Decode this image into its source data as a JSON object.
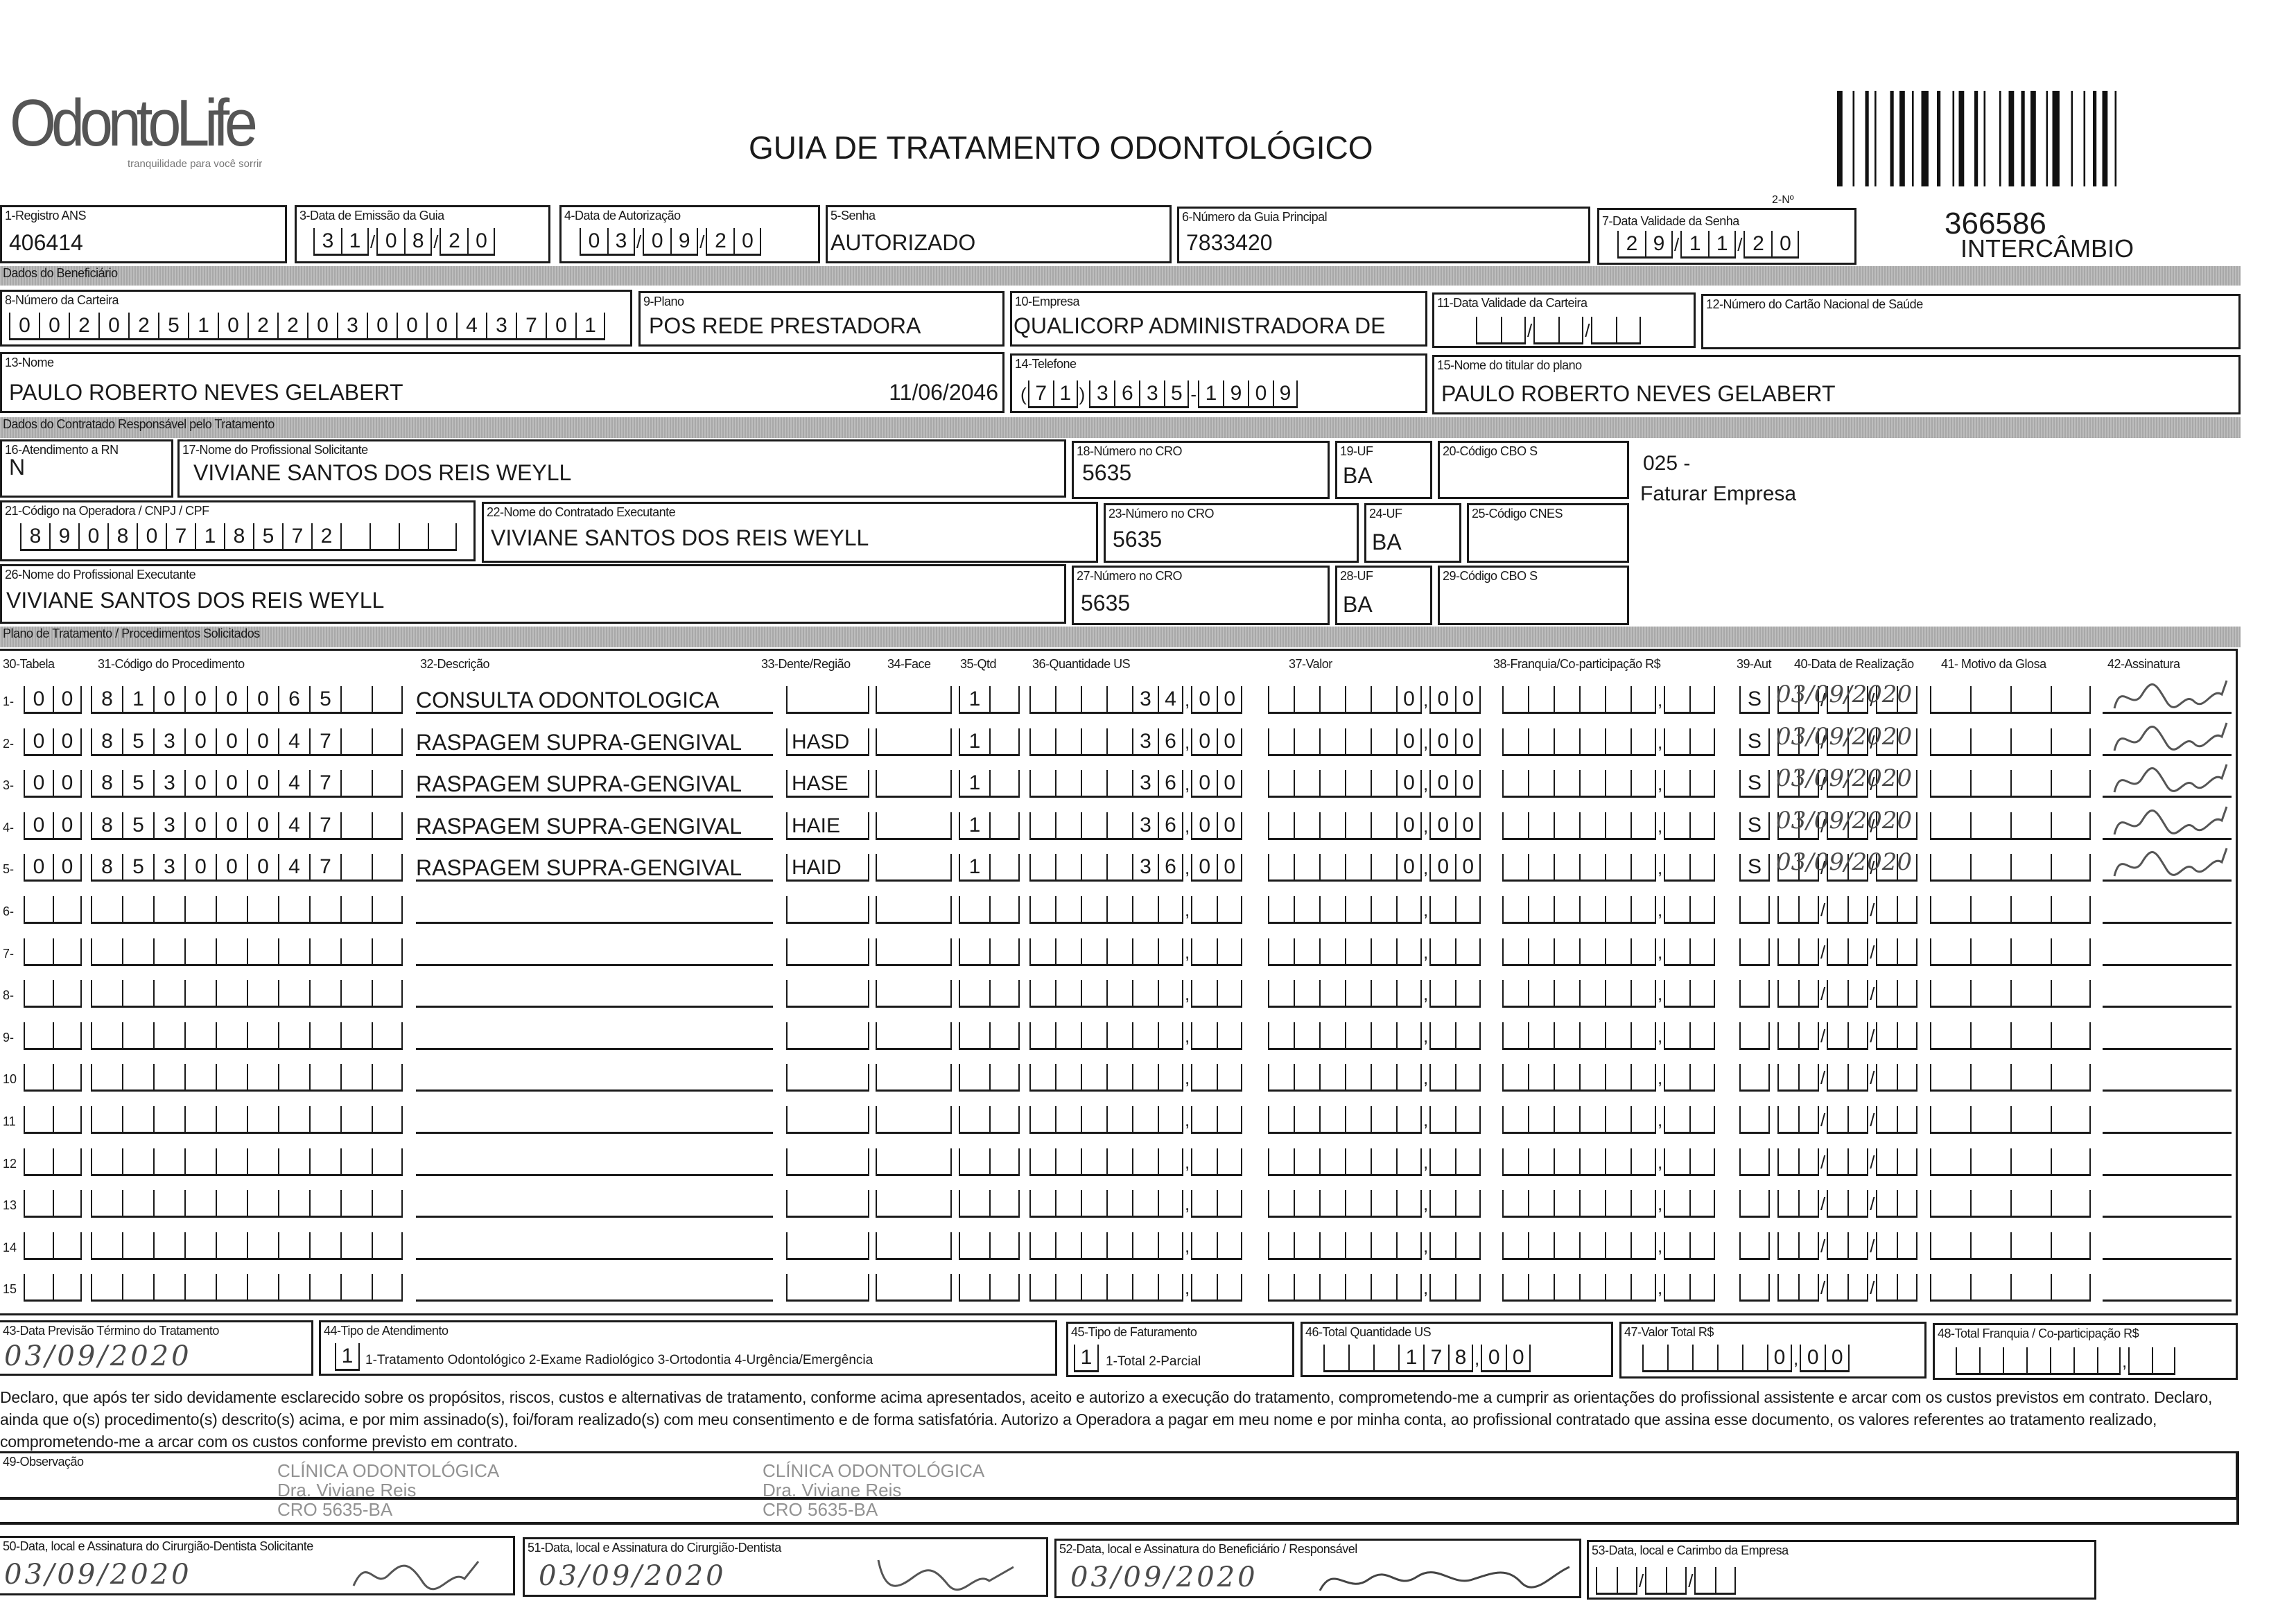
{
  "header": {
    "logo_text": "OdontoLife",
    "logo_tagline": "tranquilidade para você sorrir",
    "title": "GUIA DE TRATAMENTO ODONTOLÓGICO",
    "guide_no_label": "2-Nº",
    "guide_number": "366586",
    "guide_type": "INTERCÂMBIO"
  },
  "fields": {
    "registro_ans": {
      "label": "1-Registro ANS",
      "value": "406414"
    },
    "data_emissao": {
      "label": "3-Data de Emissão da Guia",
      "value": "310820"
    },
    "data_autorizacao": {
      "label": "4-Data de Autorização",
      "value": "030920"
    },
    "senha": {
      "label": "5-Senha",
      "value": "AUTORIZADO"
    },
    "guia_principal": {
      "label": "6-Número da Guia Principal",
      "value": "7833420"
    },
    "validade_senha": {
      "label": "7-Data Validade da Senha",
      "value": "291120"
    },
    "numero_carteira": {
      "label": "8-Número da Carteira",
      "value": "00202510220300043701"
    },
    "plano": {
      "label": "9-Plano",
      "value": "POS REDE PRESTADORA"
    },
    "empresa": {
      "label": "10-Empresa",
      "value": "QUALICORP ADMINISTRADORA DE"
    },
    "validade_carteira": {
      "label": "11-Data Validade da Carteira",
      "value": ""
    },
    "cartao_nacional": {
      "label": "12-Número do Cartão Nacional de Saúde",
      "value": ""
    },
    "nome": {
      "label": "13-Nome",
      "value": "PAULO ROBERTO NEVES GELABERT",
      "date": "11/06/2046"
    },
    "telefone": {
      "label": "14-Telefone",
      "value": "7136351909"
    },
    "titular": {
      "label": "15-Nome do titular do plano",
      "value": "PAULO ROBERTO NEVES GELABERT"
    },
    "atendimento_rn": {
      "label": "16-Atendimento a RN",
      "value": "N"
    },
    "prof_solicitante": {
      "label": "17-Nome do Profissional Solicitante",
      "value": "VIVIANE SANTOS DOS REIS WEYLL"
    },
    "cro_18": {
      "label": "18-Número no CRO",
      "value": "5635"
    },
    "uf_19": {
      "label": "19-UF",
      "value": "BA"
    },
    "cbo_20": {
      "label": "20-Código CBO S",
      "value": ""
    },
    "codigo_operadora": {
      "label": "21-Código na Operadora / CNPJ / CPF",
      "value": "89080718572"
    },
    "contratado_executante": {
      "label": "22-Nome do Contratado Executante",
      "value": "VIVIANE SANTOS DOS REIS WEYLL"
    },
    "cro_23": {
      "label": "23-Número no CRO",
      "value": "5635"
    },
    "uf_24": {
      "label": "24-UF",
      "value": "BA"
    },
    "cnes_25": {
      "label": "25-Código CNES",
      "value": ""
    },
    "prof_executante": {
      "label": "26-Nome do Profissional Executante",
      "value": "VIVIANE SANTOS DOS REIS WEYLL"
    },
    "cro_27": {
      "label": "27-Número no CRO",
      "value": "5635"
    },
    "uf_28": {
      "label": "28-UF",
      "value": "BA"
    },
    "cbo_29": {
      "label": "29-Código CBO S",
      "value": ""
    }
  },
  "side_note": {
    "code": "025 -",
    "text": "Faturar Empresa"
  },
  "sections": {
    "beneficiario": "Dados do Beneficiário",
    "contratado": "Dados do Contratado Responsável pelo Tratamento",
    "plano": "Plano de Tratamento / Procedimentos Solicitados"
  },
  "table": {
    "headers": [
      "30-Tabela",
      "31-Código do Procedimento",
      "32-Descrição",
      "33-Dente/Região",
      "34-Face",
      "35-Qtd",
      "36-Quantidade US",
      "37-Valor",
      "38-Franquia/Co-participação R$",
      "39-Aut",
      "40-Data de Realização",
      "41- Motivo da Glosa",
      "42-Assinatura"
    ],
    "rows": [
      {
        "n": "1-",
        "tabela": "00",
        "codigo": "81000065",
        "descricao": "CONSULTA ODONTOLOGICA",
        "dente": "",
        "face": "",
        "qtd": "1",
        "qtd_us": "3400",
        "valor": "000",
        "franquia": "",
        "aut": "S",
        "data": "03/09/2020",
        "glosa": "",
        "signed": true
      },
      {
        "n": "2-",
        "tabela": "00",
        "codigo": "85300047",
        "descricao": "RASPAGEM SUPRA-GENGIVAL",
        "dente": "HASD",
        "face": "",
        "qtd": "1",
        "qtd_us": "3600",
        "valor": "000",
        "franquia": "",
        "aut": "S",
        "data": "03/09/2020",
        "glosa": "",
        "signed": true
      },
      {
        "n": "3-",
        "tabela": "00",
        "codigo": "85300047",
        "descricao": "RASPAGEM SUPRA-GENGIVAL",
        "dente": "HASE",
        "face": "",
        "qtd": "1",
        "qtd_us": "3600",
        "valor": "000",
        "franquia": "",
        "aut": "S",
        "data": "03/09/2020",
        "glosa": "",
        "signed": true
      },
      {
        "n": "4-",
        "tabela": "00",
        "codigo": "85300047",
        "descricao": "RASPAGEM SUPRA-GENGIVAL",
        "dente": "HAIE",
        "face": "",
        "qtd": "1",
        "qtd_us": "3600",
        "valor": "000",
        "franquia": "",
        "aut": "S",
        "data": "03/09/2020",
        "glosa": "",
        "signed": true
      },
      {
        "n": "5-",
        "tabela": "00",
        "codigo": "85300047",
        "descricao": "RASPAGEM SUPRA-GENGIVAL",
        "dente": "HAID",
        "face": "",
        "qtd": "1",
        "qtd_us": "3600",
        "valor": "000",
        "franquia": "",
        "aut": "S",
        "data": "03/09/2020",
        "glosa": "",
        "signed": true
      },
      {
        "n": "6-"
      },
      {
        "n": "7-"
      },
      {
        "n": "8-"
      },
      {
        "n": "9-"
      },
      {
        "n": "10"
      },
      {
        "n": "11"
      },
      {
        "n": "12"
      },
      {
        "n": "13"
      },
      {
        "n": "14"
      },
      {
        "n": "15"
      }
    ]
  },
  "footer": {
    "previsao": {
      "label": "43-Data Previsão Término do Tratamento",
      "value": "03/09/2020"
    },
    "tipo_atendimento": {
      "label": "44-Tipo de Atendimento",
      "value": "1",
      "options": "1-Tratamento Odontológico  2-Exame Radiológico  3-Ortodontia  4-Urgência/Emergência"
    },
    "tipo_faturamento": {
      "label": "45-Tipo de Faturamento",
      "value": "1",
      "options": "1-Total  2-Parcial"
    },
    "total_us": {
      "label": "46-Total Quantidade US",
      "value": "17800"
    },
    "valor_total": {
      "label": "47-Valor Total R$",
      "value": "000"
    },
    "total_franquia": {
      "label": "48-Total Franquia / Co-participação R$",
      "value": ""
    },
    "declaracao": "Declaro, que após ter sido devidamente esclarecido sobre os propósitos, riscos, custos e alternativas de tratamento, conforme acima apresentados, aceito e autorizo a execução do tratamento, comprometendo-me a cumprir as orientações do profissional assistente e arcar com os custos previstos em contrato. Declaro, ainda que o(s) procedimento(s) descrito(s) acima, e por mim assinado(s), foi/foram realizado(s) com meu consentimento e de forma satisfatória. Autorizo a Operadora a pagar em meu nome e por minha conta, ao profissional contratado que assina esse documento, os valores referentes ao tratamento realizado, comprometendo-me a arcar com os custos conforme previsto em contrato.",
    "observacao": {
      "label": "49-Observação",
      "value": ""
    },
    "sig_50": {
      "label": "50-Data, local e Assinatura do Cirurgião-Dentista Solicitante",
      "date": "03/09/2020"
    },
    "sig_51": {
      "label": "51-Data, local e Assinatura do Cirurgião-Dentista",
      "date": "03/09/2020"
    },
    "sig_52": {
      "label": "52-Data, local e Assinatura do Beneficiário / Responsável",
      "date": "03/09/2020"
    },
    "sig_53": {
      "label": "53-Data, local e Carimbo da Empresa",
      "value": ""
    }
  },
  "stamps": [
    "CLÍNICA ODONTOLÓGICA",
    "Dra. Viviane Reis",
    "CRO 5635-BA"
  ]
}
